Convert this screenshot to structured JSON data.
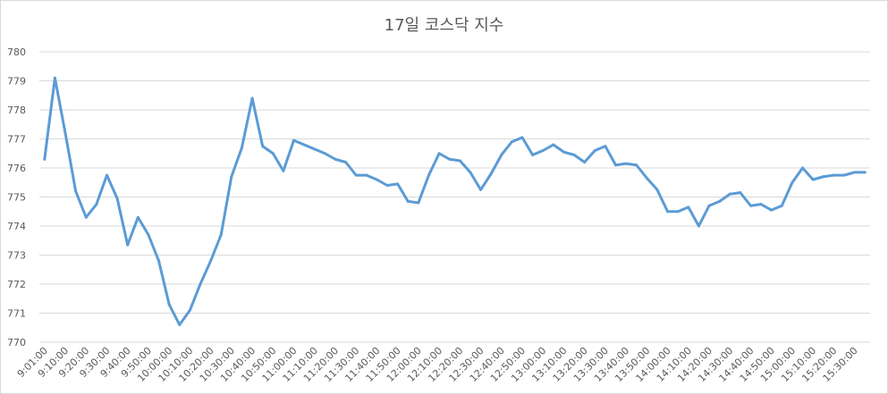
{
  "chart_data": {
    "type": "line",
    "title": "17일 코스닥 지수",
    "xlabel": "",
    "ylabel": "",
    "ylim": [
      770,
      780
    ],
    "yticks": [
      770,
      771,
      772,
      773,
      774,
      775,
      776,
      777,
      778,
      779,
      780
    ],
    "grid": "horizontal",
    "legend": "none",
    "line_color": "#5b9bd5",
    "x_tick_labels": [
      "9:01:00",
      "9:10:00",
      "9:20:00",
      "9:30:00",
      "9:40:00",
      "9:50:00",
      "10:00:00",
      "10:10:00",
      "10:20:00",
      "10:30:00",
      "10:40:00",
      "10:50:00",
      "11:00:00",
      "11:10:00",
      "11:20:00",
      "11:30:00",
      "11:40:00",
      "11:50:00",
      "12:00:00",
      "12:10:00",
      "12:20:00",
      "12:30:00",
      "12:40:00",
      "12:50:00",
      "13:00:00",
      "13:10:00",
      "13:20:00",
      "13:30:00",
      "13:40:00",
      "13:50:00",
      "14:00:00",
      "14:10:00",
      "14:20:00",
      "14:30:00",
      "14:40:00",
      "14:50:00",
      "15:00:00",
      "15:10:00",
      "15:20:00",
      "15:30:00"
    ],
    "series": [
      {
        "values": [
          776.3,
          779.1,
          777.2,
          775.2,
          774.3,
          774.75,
          775.75,
          774.95,
          773.35,
          774.3,
          773.7,
          772.8,
          771.3,
          770.6,
          771.1,
          772.0,
          772.8,
          773.7,
          775.7,
          776.7,
          778.4,
          776.75,
          776.5,
          775.9,
          776.95,
          776.8,
          776.65,
          776.5,
          776.3,
          776.2,
          775.75,
          775.75,
          775.6,
          775.4,
          775.45,
          774.85,
          774.8,
          775.75,
          776.5,
          776.3,
          776.25,
          775.85,
          775.25,
          775.8,
          776.45,
          776.9,
          777.05,
          776.45,
          776.6,
          776.8,
          776.55,
          776.45,
          776.2,
          776.6,
          776.75,
          776.1,
          776.15,
          776.1,
          775.65,
          775.25,
          774.5,
          774.5,
          774.65,
          774.0,
          774.7,
          774.85,
          775.1,
          775.15,
          774.7,
          774.75,
          774.55,
          774.7,
          775.5,
          776.0,
          775.6,
          775.7,
          775.75,
          775.75,
          775.85,
          775.85
        ]
      }
    ]
  }
}
